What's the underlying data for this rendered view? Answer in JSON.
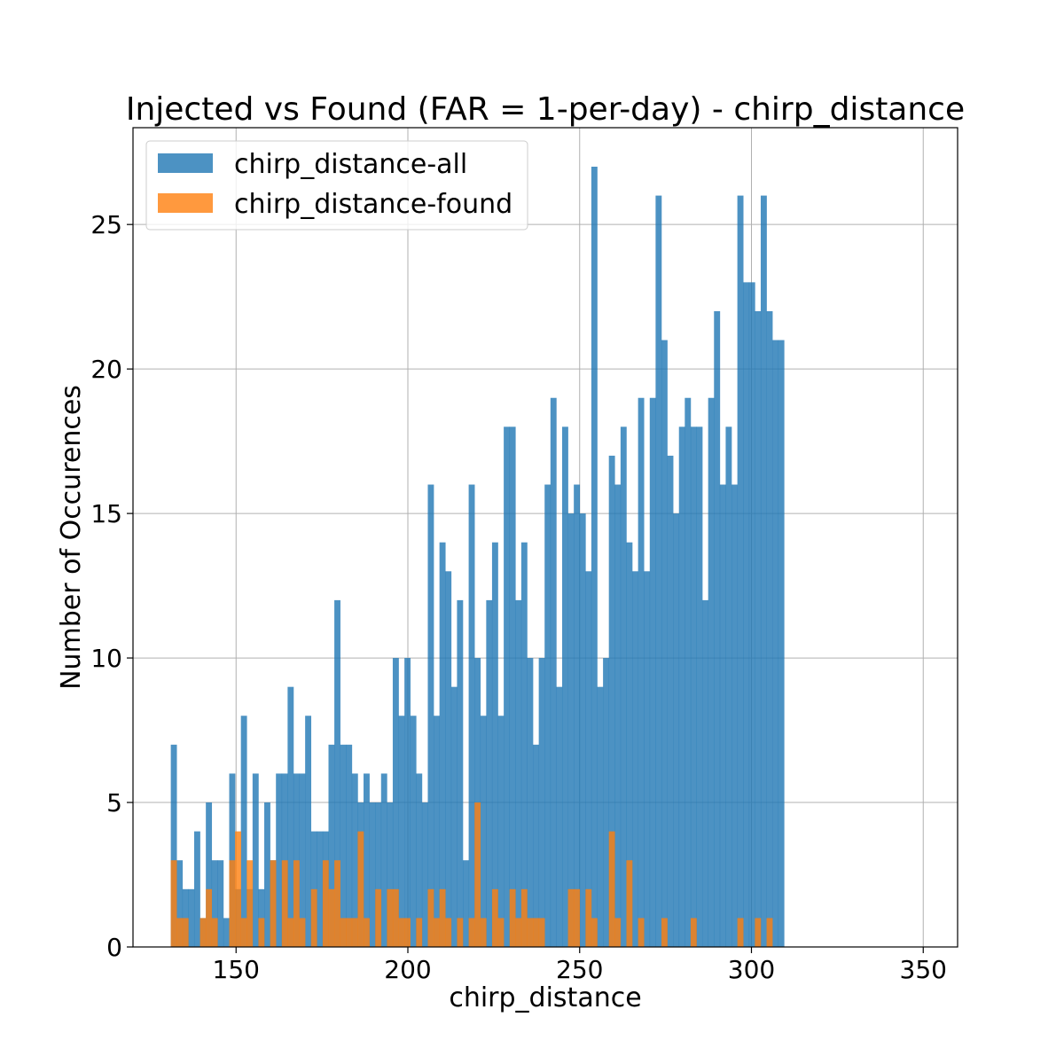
{
  "chart_data": {
    "type": "bar",
    "title": "Injected vs Found (FAR = 1-per-day) - chirp_distance",
    "xlabel": "chirp_distance",
    "ylabel": "Number of Occurences",
    "xlim": [
      120,
      360
    ],
    "ylim": [
      0,
      28.35
    ],
    "xticks": [
      150,
      200,
      250,
      300,
      350
    ],
    "yticks": [
      0,
      5,
      10,
      15,
      20,
      25
    ],
    "grid": true,
    "legend_position": "upper-left",
    "bin_start": 131,
    "bin_width": 1.7,
    "series": [
      {
        "name": "chirp_distance-all",
        "color": "#1f77b4",
        "values": [
          7,
          3,
          2,
          2,
          4,
          1,
          5,
          3,
          3,
          1,
          6,
          2,
          8,
          2,
          6,
          2,
          5,
          3,
          6,
          6,
          9,
          6,
          6,
          8,
          4,
          4,
          4,
          7,
          12,
          7,
          7,
          6,
          5,
          6,
          5,
          5,
          6,
          5,
          10,
          8,
          10,
          8,
          6,
          5,
          16,
          8,
          14,
          13,
          9,
          12,
          3,
          16,
          10,
          8,
          12,
          14,
          8,
          18,
          18,
          12,
          14,
          10,
          7,
          10,
          16,
          19,
          9,
          18,
          15,
          16,
          15,
          13,
          27,
          9,
          10,
          17,
          16,
          18,
          14,
          13,
          19,
          13,
          19,
          26,
          21,
          17,
          15,
          18,
          19,
          18,
          18,
          12,
          19,
          22,
          16,
          18,
          16,
          26,
          23,
          23,
          22,
          26,
          22,
          21,
          21
        ]
      },
      {
        "name": "chirp_distance-found",
        "color": "#ff7f0e",
        "values": [
          3,
          1,
          1,
          0,
          0,
          1,
          2,
          1,
          0,
          0,
          3,
          4,
          1,
          3,
          0,
          1,
          0,
          3,
          0,
          3,
          1,
          3,
          1,
          0,
          2,
          0,
          3,
          2,
          3,
          1,
          1,
          1,
          4,
          1,
          0,
          2,
          0,
          2,
          2,
          1,
          1,
          0,
          1,
          0,
          2,
          1,
          2,
          1,
          0,
          1,
          0,
          1,
          5,
          1,
          0,
          2,
          1,
          0,
          2,
          1,
          2,
          1,
          1,
          1,
          0,
          0,
          0,
          0,
          2,
          2,
          0,
          2,
          1,
          0,
          0,
          4,
          1,
          0,
          3,
          0,
          1,
          0,
          0,
          0,
          1,
          0,
          0,
          0,
          0,
          1,
          0,
          0,
          0,
          0,
          0,
          0,
          0,
          1,
          0,
          0,
          1,
          0,
          1,
          0,
          0
        ]
      }
    ]
  }
}
